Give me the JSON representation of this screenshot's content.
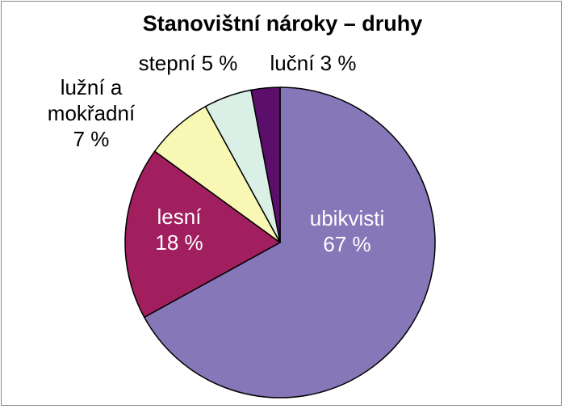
{
  "chart_data": {
    "type": "pie",
    "title": "Stanovištní nároky – druhy",
    "categories": [
      "ubikvisti",
      "lesní",
      "lužní a mokřadní",
      "stepní",
      "luční"
    ],
    "values": [
      67,
      18,
      7,
      5,
      3
    ],
    "value_labels": [
      "67 %",
      "18 %",
      "7 %",
      "5 %",
      "3 %"
    ],
    "colors": [
      "#8677b8",
      "#a11e5f",
      "#f8f8b4",
      "#daefe6",
      "#5b0f6b"
    ]
  }
}
